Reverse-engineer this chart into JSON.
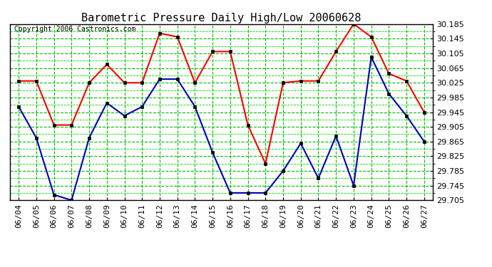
{
  "title": "Barometric Pressure Daily High/Low 20060628",
  "copyright": "Copyright 2006 Castronics.com",
  "dates": [
    "06/04",
    "06/05",
    "06/06",
    "06/07",
    "06/08",
    "06/09",
    "06/10",
    "06/11",
    "06/12",
    "06/13",
    "06/14",
    "06/15",
    "06/16",
    "06/17",
    "06/18",
    "06/19",
    "06/20",
    "06/21",
    "06/22",
    "06/23",
    "06/24",
    "06/25",
    "06/26",
    "06/27"
  ],
  "high_values": [
    30.03,
    30.03,
    29.91,
    29.91,
    30.025,
    30.075,
    30.025,
    30.025,
    30.16,
    30.15,
    30.025,
    30.11,
    30.11,
    29.91,
    29.805,
    30.025,
    30.03,
    30.03,
    30.11,
    30.185,
    30.15,
    30.05,
    30.03,
    29.945
  ],
  "low_values": [
    29.96,
    29.875,
    29.72,
    29.705,
    29.875,
    29.97,
    29.935,
    29.96,
    30.035,
    30.035,
    29.96,
    29.835,
    29.725,
    29.725,
    29.725,
    29.785,
    29.86,
    29.765,
    29.88,
    29.745,
    30.095,
    29.995,
    29.935,
    29.865
  ],
  "high_color": "#ff0000",
  "low_color": "#0000bb",
  "bg_color": "#ffffff",
  "grid_major_color": "#00bb00",
  "grid_minor_color": "#00dd00",
  "ylim_min": 29.705,
  "ylim_max": 30.185,
  "ytick_step": 0.04,
  "title_fontsize": 11,
  "copyright_fontsize": 7,
  "tick_fontsize": 8
}
